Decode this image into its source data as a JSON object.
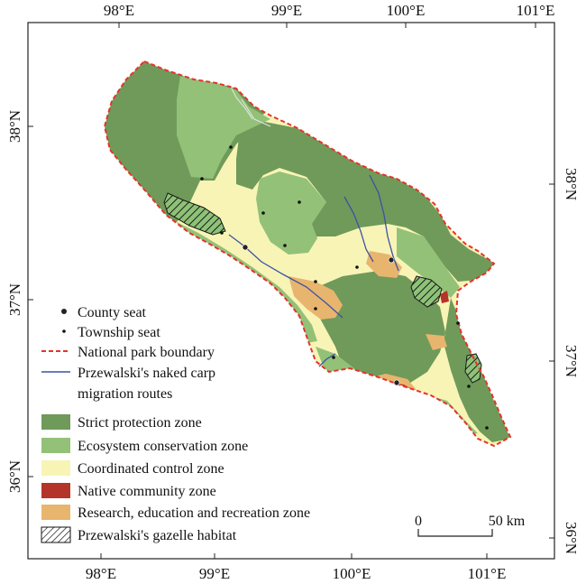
{
  "map": {
    "top_lon_labels": [
      "98°E",
      "99°E",
      "100°E",
      "101°E"
    ],
    "bottom_lon_labels": [
      "98°E",
      "99°E",
      "100°E",
      "101°E"
    ],
    "left_lat_labels": [
      "38°N",
      "37°N",
      "36°N"
    ],
    "right_lat_labels": [
      "38°N",
      "37°N",
      "36°N"
    ]
  },
  "legend": {
    "county_seat": "County seat",
    "township_seat": "Township seat",
    "boundary": "National park boundary",
    "carp_line1": "Przewalski's naked carp",
    "carp_line2": "migration routes",
    "strict": "Strict protection zone",
    "ecosystem": "Ecosystem conservation zone",
    "coordinated": "Coordinated control zone",
    "community": "Native community zone",
    "research": "Research, education and recreation zone",
    "gazelle": "Przewalski's gazelle habitat"
  },
  "scale_bar": {
    "start_label": "0",
    "end_label": "50 km"
  },
  "colors": {
    "strict": "#6f9a5a",
    "ecosystem": "#93c178",
    "coordinated": "#f8f4b6",
    "community": "#b5342a",
    "research": "#e8b56e",
    "boundary": "#e3342a",
    "river": "#3a52a6",
    "gazelle": "#8dc277"
  }
}
